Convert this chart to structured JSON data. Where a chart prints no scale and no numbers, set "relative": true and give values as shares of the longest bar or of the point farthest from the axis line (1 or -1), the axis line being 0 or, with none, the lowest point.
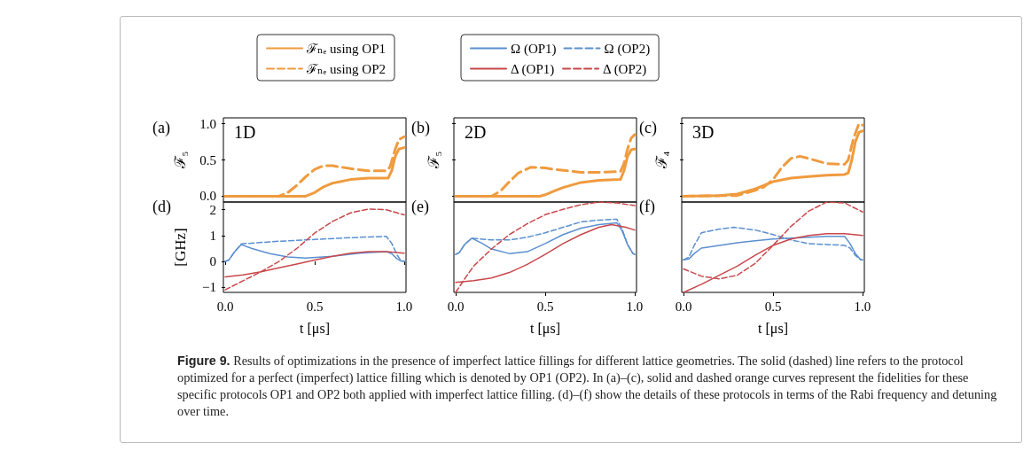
{
  "chart_data": [
    {
      "type": "line",
      "ylabel": "ℱ₅",
      "annotations": [
        "(a)",
        "1D"
      ],
      "legend": "top",
      "xlim": [
        -0.01,
        1.01
      ],
      "ylim": [
        -0.08,
        1.08
      ],
      "yticks": [
        {
          "value": 0,
          "label": "0.0"
        },
        {
          "value": 0.5,
          "label": "0.5"
        },
        {
          "value": 1,
          "label": "1.0"
        }
      ],
      "tick_labels": "y",
      "series": [
        {
          "name": "ℱₙₑ using OP1",
          "color": "#ef9b3f",
          "line_style": "solid",
          "x": [
            0,
            0.45,
            0.5,
            0.55,
            0.6,
            0.7,
            0.8,
            0.91,
            0.93,
            0.95,
            0.97,
            1.0
          ],
          "values": [
            0,
            0,
            0.05,
            0.13,
            0.18,
            0.23,
            0.25,
            0.25,
            0.35,
            0.55,
            0.65,
            0.67
          ]
        },
        {
          "name": "ℱₙₑ using OP2",
          "color": "#ef9b3f",
          "line_style": "dashed",
          "x": [
            0,
            0.3,
            0.35,
            0.4,
            0.45,
            0.5,
            0.55,
            0.6,
            0.7,
            0.8,
            0.9,
            0.92,
            0.95,
            0.97,
            1.0
          ],
          "values": [
            0,
            0,
            0.05,
            0.15,
            0.27,
            0.37,
            0.42,
            0.42,
            0.38,
            0.35,
            0.35,
            0.4,
            0.65,
            0.78,
            0.82
          ]
        }
      ]
    },
    {
      "type": "line",
      "ylabel": "ℱ₅",
      "annotations": [
        "(b)",
        "2D"
      ],
      "xlim": [
        -0.01,
        1.01
      ],
      "ylim": [
        -0.08,
        1.08
      ],
      "yticks": [
        0,
        0.5,
        1
      ],
      "tick_labels": false,
      "series": [
        {
          "color": "#ef9b3f",
          "line_style": "solid",
          "x": [
            0,
            0.47,
            0.5,
            0.55,
            0.6,
            0.7,
            0.8,
            0.92,
            0.94,
            0.96,
            0.98,
            1.0
          ],
          "values": [
            0,
            0,
            0.02,
            0.07,
            0.12,
            0.19,
            0.22,
            0.23,
            0.35,
            0.55,
            0.64,
            0.65
          ]
        },
        {
          "color": "#ef9b3f",
          "line_style": "dashed",
          "x": [
            0,
            0.2,
            0.25,
            0.3,
            0.35,
            0.42,
            0.5,
            0.55,
            0.7,
            0.8,
            0.92,
            0.94,
            0.96,
            0.98,
            1.0
          ],
          "values": [
            0,
            0,
            0.07,
            0.2,
            0.32,
            0.4,
            0.39,
            0.37,
            0.33,
            0.33,
            0.34,
            0.45,
            0.65,
            0.8,
            0.85
          ]
        }
      ]
    },
    {
      "type": "line",
      "ylabel": "ℱ₄",
      "annotations": [
        "(c)",
        "3D"
      ],
      "xlim": [
        -0.01,
        1.01
      ],
      "ylim": [
        -0.08,
        1.08
      ],
      "yticks": [
        0,
        0.5,
        1
      ],
      "tick_labels": false,
      "series": [
        {
          "color": "#ef9b3f",
          "line_style": "solid",
          "x": [
            0,
            0.2,
            0.3,
            0.4,
            0.5,
            0.6,
            0.7,
            0.8,
            0.9,
            0.92,
            0.94,
            0.96,
            0.98,
            1.0
          ],
          "values": [
            0,
            0.01,
            0.03,
            0.1,
            0.2,
            0.25,
            0.27,
            0.29,
            0.3,
            0.32,
            0.5,
            0.75,
            0.88,
            0.9
          ]
        },
        {
          "color": "#ef9b3f",
          "line_style": "dashed",
          "x": [
            0,
            0.3,
            0.4,
            0.45,
            0.5,
            0.55,
            0.6,
            0.65,
            0.7,
            0.8,
            0.9,
            0.92,
            0.95,
            0.98,
            1.0
          ],
          "values": [
            0,
            0.01,
            0.08,
            0.13,
            0.23,
            0.4,
            0.52,
            0.55,
            0.52,
            0.45,
            0.44,
            0.5,
            0.8,
            1.0,
            0.98
          ]
        }
      ]
    },
    {
      "type": "line",
      "ylabel": "[GHz]",
      "xlabel": "t [μs]",
      "annotations": [
        "(d)"
      ],
      "legend": "top",
      "xlim": [
        -0.01,
        1.01
      ],
      "ylim": [
        -1.2,
        2.3
      ],
      "xticks": [
        {
          "value": 0,
          "label": "0.0"
        },
        {
          "value": 0.5,
          "label": "0.5"
        },
        {
          "value": 1,
          "label": "1.0"
        }
      ],
      "yticks": [
        {
          "value": -1,
          "label": "−1"
        },
        0,
        1,
        2
      ],
      "series": [
        {
          "name": "Ω (OP1)",
          "color": "#5b8fd0",
          "line_style": "solid",
          "x": [
            0,
            0.02,
            0.05,
            0.09,
            0.15,
            0.25,
            0.35,
            0.45,
            0.6,
            0.75,
            0.9,
            0.93,
            0.96,
            0.98,
            1.0
          ],
          "values": [
            0,
            0.05,
            0.35,
            0.65,
            0.5,
            0.3,
            0.17,
            0.13,
            0.2,
            0.32,
            0.38,
            0.3,
            0.1,
            0.02,
            0
          ]
        },
        {
          "name": "Ω (OP2)",
          "color": "#5b8fd0",
          "line_style": "dashed",
          "x": [
            0,
            0.02,
            0.05,
            0.09,
            0.3,
            0.5,
            0.7,
            0.9,
            0.93,
            0.96,
            0.98,
            1.0
          ],
          "values": [
            0,
            0.05,
            0.35,
            0.68,
            0.78,
            0.85,
            0.92,
            0.97,
            0.7,
            0.25,
            0.05,
            0
          ]
        },
        {
          "name": "Δ (OP1)",
          "color": "#c9474a",
          "line_style": "solid",
          "x": [
            0,
            0.1,
            0.2,
            0.3,
            0.4,
            0.5,
            0.6,
            0.7,
            0.8,
            0.9,
            1.0
          ],
          "values": [
            -0.6,
            -0.52,
            -0.4,
            -0.25,
            -0.1,
            0.05,
            0.2,
            0.32,
            0.38,
            0.38,
            0.32
          ]
        },
        {
          "name": "Δ (OP2)",
          "color": "#c9474a",
          "line_style": "dashed",
          "x": [
            0,
            0.1,
            0.2,
            0.3,
            0.4,
            0.5,
            0.6,
            0.7,
            0.8,
            0.9,
            1.0
          ],
          "values": [
            -1.1,
            -0.75,
            -0.4,
            0,
            0.5,
            1.1,
            1.55,
            1.88,
            2.03,
            2.0,
            1.8
          ]
        }
      ]
    },
    {
      "type": "line",
      "relative": true,
      "xlabel": "t [μs]",
      "annotations": [
        "(e)"
      ],
      "xlim": [
        -0.01,
        1.01
      ],
      "xticks": [
        {
          "value": 0,
          "label": "0.0"
        },
        {
          "value": 0.5,
          "label": "0.5"
        },
        {
          "value": 1,
          "label": "1.0"
        }
      ],
      "series": [
        {
          "color": "#5b8fd0",
          "line_style": "solid",
          "x": [
            0,
            0.02,
            0.05,
            0.09,
            0.15,
            0.2,
            0.3,
            0.4,
            0.5,
            0.6,
            0.7,
            0.8,
            0.9,
            0.93,
            0.96,
            0.99,
            1.0
          ],
          "values": [
            0.42,
            0.44,
            0.53,
            0.6,
            0.54,
            0.48,
            0.43,
            0.45,
            0.54,
            0.64,
            0.71,
            0.75,
            0.77,
            0.68,
            0.53,
            0.43,
            0.42
          ]
        },
        {
          "color": "#5b8fd0",
          "line_style": "dashed",
          "x": [
            0,
            0.02,
            0.05,
            0.09,
            0.2,
            0.3,
            0.4,
            0.5,
            0.6,
            0.7,
            0.8,
            0.9,
            0.93,
            0.96,
            0.99,
            1.0
          ],
          "values": [
            0.42,
            0.44,
            0.53,
            0.6,
            0.58,
            0.58,
            0.61,
            0.66,
            0.72,
            0.78,
            0.8,
            0.81,
            0.7,
            0.53,
            0.43,
            0.42
          ]
        },
        {
          "color": "#c9474a",
          "line_style": "solid",
          "x": [
            0,
            0.1,
            0.2,
            0.3,
            0.4,
            0.5,
            0.6,
            0.7,
            0.8,
            0.87,
            0.95,
            1.0
          ],
          "values": [
            0.11,
            0.13,
            0.16,
            0.22,
            0.31,
            0.42,
            0.54,
            0.64,
            0.72,
            0.75,
            0.72,
            0.69
          ]
        },
        {
          "color": "#c9474a",
          "line_style": "dashed",
          "x": [
            0,
            0.05,
            0.1,
            0.2,
            0.3,
            0.4,
            0.5,
            0.6,
            0.7,
            0.8,
            0.9,
            1.0
          ],
          "values": [
            0,
            0.15,
            0.29,
            0.48,
            0.64,
            0.76,
            0.86,
            0.92,
            0.97,
            1,
            0.99,
            0.96
          ]
        }
      ]
    },
    {
      "type": "line",
      "relative": true,
      "xlabel": "t [μs]",
      "annotations": [
        "(f)"
      ],
      "xlim": [
        -0.01,
        1.01
      ],
      "xticks": [
        {
          "value": 0,
          "label": "0.0"
        },
        {
          "value": 0.5,
          "label": "0.5"
        },
        {
          "value": 1,
          "label": "1.0"
        }
      ],
      "series": [
        {
          "color": "#5b8fd0",
          "line_style": "solid",
          "x": [
            0,
            0.03,
            0.06,
            0.1,
            0.2,
            0.3,
            0.4,
            0.5,
            0.6,
            0.7,
            0.8,
            0.9,
            0.93,
            0.96,
            0.99,
            1.0
          ],
          "values": [
            0.36,
            0.37,
            0.43,
            0.49,
            0.52,
            0.55,
            0.57,
            0.59,
            0.6,
            0.61,
            0.62,
            0.62,
            0.54,
            0.43,
            0.36,
            0.36
          ]
        },
        {
          "color": "#5b8fd0",
          "line_style": "dashed",
          "x": [
            0,
            0.03,
            0.06,
            0.1,
            0.2,
            0.28,
            0.4,
            0.5,
            0.6,
            0.7,
            0.8,
            0.9,
            0.93,
            0.96,
            0.99,
            1.0
          ],
          "values": [
            0.36,
            0.39,
            0.52,
            0.66,
            0.7,
            0.72,
            0.69,
            0.64,
            0.58,
            0.54,
            0.53,
            0.52,
            0.49,
            0.41,
            0.36,
            0.36
          ]
        },
        {
          "color": "#c9474a",
          "line_style": "solid",
          "x": [
            0,
            0.1,
            0.2,
            0.3,
            0.4,
            0.5,
            0.6,
            0.7,
            0.8,
            0.9,
            1.0
          ],
          "values": [
            0,
            0.09,
            0.19,
            0.29,
            0.41,
            0.52,
            0.59,
            0.63,
            0.65,
            0.65,
            0.63
          ]
        },
        {
          "color": "#c9474a",
          "line_style": "dashed",
          "x": [
            0,
            0.1,
            0.2,
            0.3,
            0.4,
            0.5,
            0.6,
            0.7,
            0.8,
            0.9,
            1.0
          ],
          "values": [
            0.26,
            0.18,
            0.15,
            0.19,
            0.32,
            0.52,
            0.73,
            0.9,
            1,
            0.99,
            0.89
          ]
        }
      ]
    },
    {
      "type": "other",
      "annotations": [
        "Figure 9.",
        "Results of optimizations in the presence of imperfect lattice fillings for different lattice geometries. The solid (dashed) line refers to the protocol optimized for a perfect (imperfect) lattice filling which is denoted by OP1 (OP2). In (a)–(c), solid and dashed orange curves represent the fidelities for these specific protocols OP1 and OP2 both applied with imperfect lattice filling. (d)–(f) show the details of these protocols in terms of the Rabi frequency and detuning over time."
      ]
    }
  ]
}
